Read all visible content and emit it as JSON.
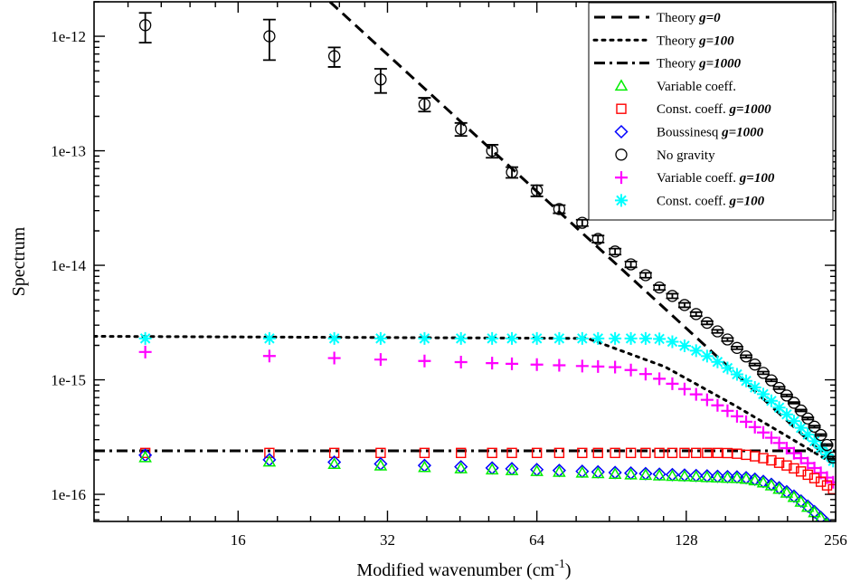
{
  "chart_data": {
    "type": "scatter",
    "xlabel": "Modified wavenumber (cm",
    "xlabel_sup": "-1",
    "xlabel_end": ")",
    "ylabel": "Spectrum",
    "xscale": "log2",
    "yscale": "log10",
    "xlim": [
      8.2,
      256
    ],
    "ylim": [
      5.8e-17,
      2e-12
    ],
    "x_ticks": [
      16,
      32,
      64,
      128,
      256
    ],
    "x_tick_labels": [
      "16",
      "32",
      "64",
      "128",
      "256"
    ],
    "y_ticks": [
      1e-16,
      1e-15,
      1e-14,
      1e-13,
      1e-12
    ],
    "y_tick_labels": [
      "1e-16",
      "1e-15",
      "1e-14",
      "1e-13",
      "1e-12"
    ],
    "legend_position": "top-right",
    "legend": [
      {
        "id": "theory-g0",
        "plain": "Theory ",
        "bold": "g=0",
        "kind": "line",
        "dash": "dashed",
        "color": "#000000"
      },
      {
        "id": "theory-g100",
        "plain": "Theory ",
        "bold": "g=100",
        "kind": "line",
        "dash": "dotted",
        "color": "#000000"
      },
      {
        "id": "theory-g1000",
        "plain": "Theory ",
        "bold": "g=1000",
        "kind": "line",
        "dash": "dashdot",
        "color": "#000000"
      },
      {
        "id": "var-coeff",
        "plain": "Variable coeff.",
        "bold": "",
        "kind": "marker",
        "marker": "triangle",
        "color": "#00ee00"
      },
      {
        "id": "const-g1000",
        "plain": "Const. coeff. ",
        "bold": "g=1000",
        "kind": "marker",
        "marker": "square",
        "color": "#ff0000"
      },
      {
        "id": "bouss-g1000",
        "plain": "Boussinesq ",
        "bold": "g=1000",
        "kind": "marker",
        "marker": "diamond",
        "color": "#0000ff"
      },
      {
        "id": "no-gravity",
        "plain": "No gravity",
        "bold": "",
        "kind": "marker",
        "marker": "circle",
        "color": "#000000"
      },
      {
        "id": "var-g100",
        "plain": "Variable coeff. ",
        "bold": "g=100",
        "kind": "marker",
        "marker": "plus",
        "color": "#ff00ff"
      },
      {
        "id": "const-g100",
        "plain": "Const. coeff. ",
        "bold": "g=100",
        "kind": "marker",
        "marker": "star",
        "color": "#00ffff"
      }
    ],
    "theory_lines": [
      {
        "id": "theory-g0",
        "points": [
          [
            24.5,
            2e-12
          ],
          [
            256,
            1.8e-16
          ]
        ]
      },
      {
        "id": "theory-g100",
        "points": [
          [
            8.2,
            2.4e-15
          ],
          [
            81,
            2.3e-15
          ],
          [
            116,
            1.3e-15
          ],
          [
            160,
            6e-16
          ],
          [
            200,
            3.4e-16
          ],
          [
            256,
            1.8e-16
          ]
        ]
      },
      {
        "id": "theory-g1000",
        "points": [
          [
            8.2,
            2.4e-16
          ],
          [
            256,
            2.4e-16
          ]
        ]
      }
    ],
    "no_gravity": {
      "marker": "circle",
      "color": "#000000",
      "points": [
        {
          "x": 10.4,
          "y": 1.25e-12,
          "lo": 8.8e-13,
          "hi": 1.6e-12
        },
        {
          "x": 18.5,
          "y": 1e-12,
          "lo": 6.2e-13,
          "hi": 1.4e-12
        },
        {
          "x": 25,
          "y": 6.7e-13,
          "lo": 5.4e-13,
          "hi": 8e-13
        },
        {
          "x": 31,
          "y": 4.2e-13,
          "lo": 3.2e-13,
          "hi": 5.2e-13
        },
        {
          "x": 38,
          "y": 2.55e-13,
          "lo": 2.2e-13,
          "hi": 2.9e-13
        },
        {
          "x": 45,
          "y": 1.55e-13,
          "lo": 1.35e-13,
          "hi": 1.75e-13
        },
        {
          "x": 52,
          "y": 1e-13,
          "lo": 8.7e-14,
          "hi": 1.13e-13
        },
        {
          "x": 57,
          "y": 6.5e-14,
          "lo": 5.8e-14,
          "hi": 7.2e-14
        },
        {
          "x": 64,
          "y": 4.5e-14,
          "lo": 4e-14,
          "hi": 5e-14
        },
        {
          "x": 71,
          "y": 3.1e-14,
          "lo": 2.85e-14,
          "hi": 3.35e-14
        },
        {
          "x": 79,
          "y": 2.35e-14,
          "lo": 2.2e-14,
          "hi": 2.5e-14
        },
        {
          "x": 85,
          "y": 1.7e-14,
          "lo": 1.58e-14,
          "hi": 1.82e-14
        },
        {
          "x": 92,
          "y": 1.32e-14,
          "lo": 1.24e-14,
          "hi": 1.4e-14
        },
        {
          "x": 99,
          "y": 1.02e-14,
          "lo": 9.6e-15,
          "hi": 1.08e-14
        },
        {
          "x": 106,
          "y": 8.2e-15,
          "lo": 7.8e-15,
          "hi": 8.6e-15
        },
        {
          "x": 113,
          "y": 6.4e-15,
          "lo": 6.1e-15,
          "hi": 6.7e-15
        },
        {
          "x": 120,
          "y": 5.4e-15,
          "lo": 5.15e-15,
          "hi": 5.65e-15
        },
        {
          "x": 127,
          "y": 4.5e-15,
          "lo": 4.3e-15,
          "hi": 4.7e-15
        },
        {
          "x": 134,
          "y": 3.75e-15,
          "lo": 3.6e-15,
          "hi": 3.9e-15
        },
        {
          "x": 141,
          "y": 3.15e-15,
          "lo": 3.05e-15,
          "hi": 3.25e-15
        },
        {
          "x": 148,
          "y": 2.65e-15,
          "lo": 2.57e-15,
          "hi": 2.73e-15
        },
        {
          "x": 155,
          "y": 2.25e-15,
          "lo": 2.18e-15,
          "hi": 2.32e-15
        },
        {
          "x": 162,
          "y": 1.9e-15,
          "lo": 1.85e-15,
          "hi": 1.95e-15
        },
        {
          "x": 169,
          "y": 1.6e-15,
          "lo": 1.56e-15,
          "hi": 1.64e-15
        },
        {
          "x": 176,
          "y": 1.36e-15,
          "lo": 1.33e-15,
          "hi": 1.39e-15
        },
        {
          "x": 183,
          "y": 1.15e-15,
          "lo": 1.12e-15,
          "hi": 1.18e-15
        },
        {
          "x": 190,
          "y": 9.9e-16,
          "lo": 9.7e-16,
          "hi": 1.01e-15
        },
        {
          "x": 197,
          "y": 8.5e-16,
          "lo": 8.3e-16,
          "hi": 8.7e-16
        },
        {
          "x": 204,
          "y": 7.3e-16,
          "lo": 7.15e-16,
          "hi": 7.45e-16
        },
        {
          "x": 211,
          "y": 6.3e-16,
          "lo": 6.2e-16,
          "hi": 6.4e-16
        },
        {
          "x": 218,
          "y": 5.4e-16,
          "lo": 5.3e-16,
          "hi": 5.5e-16
        },
        {
          "x": 225,
          "y": 4.6e-16,
          "lo": 4.5e-16,
          "hi": 4.7e-16
        },
        {
          "x": 232,
          "y": 3.9e-16,
          "lo": 3.82e-16,
          "hi": 3.98e-16
        },
        {
          "x": 239,
          "y": 3.3e-16,
          "lo": 3.24e-16,
          "hi": 3.36e-16
        },
        {
          "x": 246,
          "y": 2.7e-16,
          "lo": 2.65e-16,
          "hi": 2.75e-16
        },
        {
          "x": 253,
          "y": 2.1e-16,
          "lo": 2.06e-16,
          "hi": 2.14e-16
        }
      ]
    },
    "profile_series": [
      {
        "id": "const-g100",
        "marker": "star",
        "color": "#00ffff",
        "x_min": 10.3,
        "flat": 2.3e-15,
        "knee": 110,
        "end": 1.85e-16,
        "steep": 1.6
      },
      {
        "id": "var-g100",
        "marker": "plus",
        "color": "#ff00ff",
        "x_min": 10.3,
        "flat": 1.75e-15,
        "knee": 90,
        "end": 1.65e-16,
        "steep": 1.5,
        "low_start": 10.4,
        "low_end": 88,
        "low_end_value": 1.3e-15
      },
      {
        "id": "const-g1000",
        "marker": "square",
        "color": "#ff0000",
        "x_min": 10.4,
        "flat": 2.4e-16,
        "knee": 150,
        "end": 1.12e-16,
        "steep": 2.0,
        "low_start": 150,
        "low_end": 150,
        "low_end_value": 2.3e-16
      },
      {
        "id": "bouss-g1000",
        "marker": "diamond",
        "color": "#0000ff",
        "x_min": 10.4,
        "flat": 2.2e-16,
        "knee": 160,
        "end": 7.2e-17,
        "steep": 2.0,
        "low_start": 10.4,
        "low_end": 160,
        "low_end_value": 1.42e-16
      },
      {
        "id": "var-coeff",
        "marker": "triangle",
        "color": "#00ee00",
        "x_min": 10.4,
        "flat": 2.1e-16,
        "knee": 160,
        "end": 7e-17,
        "steep": 2.0,
        "low_start": 10.4,
        "low_end": 160,
        "low_end_value": 1.38e-16
      }
    ],
    "profile_x": [
      10.4,
      18.5,
      25,
      31,
      38,
      45,
      52,
      57,
      64,
      71,
      79,
      85,
      92,
      99,
      106,
      113,
      120,
      127,
      134,
      141,
      148,
      155,
      162,
      169,
      176,
      183,
      190,
      197,
      204,
      211,
      218,
      225,
      232,
      239,
      246,
      253
    ]
  }
}
